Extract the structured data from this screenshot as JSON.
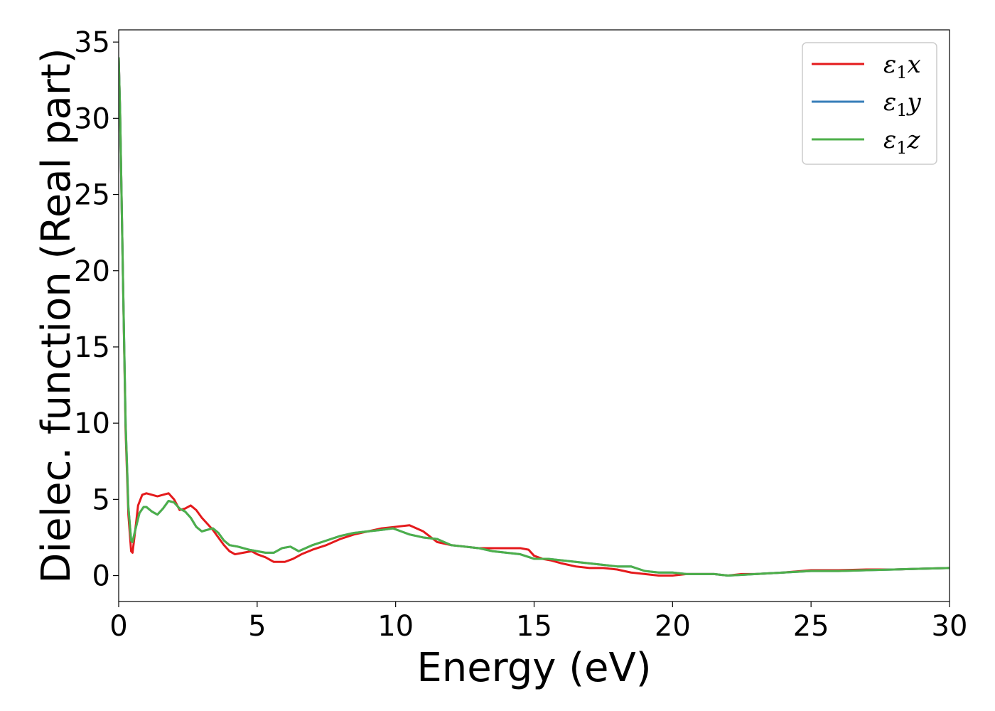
{
  "chart_data": {
    "type": "line",
    "xlabel": "Energy (eV)",
    "ylabel": "Dielec. function (Real part)",
    "xlim": [
      0,
      30
    ],
    "ylim": [
      -1.7,
      35.8
    ],
    "xticks": [
      0,
      5,
      10,
      15,
      20,
      25,
      30
    ],
    "yticks": [
      0,
      5,
      10,
      15,
      20,
      25,
      30,
      35
    ],
    "grid": false,
    "legend_position": "top-right",
    "series": [
      {
        "name": "ε1x",
        "legend": {
          "main": "ε",
          "sub": "1",
          "suffix": "x"
        },
        "color": "#e41a1c",
        "x": [
          0.0,
          0.05,
          0.15,
          0.25,
          0.35,
          0.45,
          0.5,
          0.6,
          0.7,
          0.85,
          1.0,
          1.2,
          1.4,
          1.6,
          1.8,
          2.0,
          2.2,
          2.4,
          2.6,
          2.8,
          3.0,
          3.2,
          3.4,
          3.6,
          3.8,
          4.0,
          4.2,
          4.5,
          4.8,
          5.0,
          5.3,
          5.6,
          6.0,
          6.3,
          6.6,
          7.0,
          7.5,
          8.0,
          8.5,
          9.0,
          9.5,
          10.0,
          10.5,
          11.0,
          11.5,
          12.0,
          12.5,
          13.0,
          13.5,
          14.0,
          14.5,
          14.8,
          15.0,
          15.3,
          15.6,
          16.0,
          16.5,
          17.0,
          17.5,
          18.0,
          18.5,
          19.0,
          19.5,
          20.0,
          20.5,
          21.0,
          21.5,
          22.0,
          22.5,
          23.0,
          24.0,
          25.0,
          26.0,
          27.0,
          28.0,
          29.0,
          30.0
        ],
        "values": [
          34.0,
          30.5,
          20.0,
          9.5,
          4.0,
          1.6,
          1.5,
          3.0,
          4.6,
          5.3,
          5.4,
          5.3,
          5.2,
          5.3,
          5.4,
          5.0,
          4.3,
          4.4,
          4.6,
          4.3,
          3.8,
          3.4,
          3.0,
          2.5,
          2.0,
          1.6,
          1.4,
          1.5,
          1.6,
          1.4,
          1.2,
          0.9,
          0.9,
          1.1,
          1.4,
          1.7,
          2.0,
          2.4,
          2.7,
          2.9,
          3.1,
          3.2,
          3.3,
          2.9,
          2.2,
          2.0,
          1.9,
          1.8,
          1.8,
          1.8,
          1.8,
          1.7,
          1.3,
          1.1,
          1.0,
          0.8,
          0.6,
          0.5,
          0.5,
          0.4,
          0.2,
          0.1,
          0.0,
          0.0,
          0.1,
          0.1,
          0.1,
          0.0,
          0.1,
          0.1,
          0.2,
          0.35,
          0.35,
          0.4,
          0.4,
          0.45,
          0.5
        ]
      },
      {
        "name": "ε1y",
        "legend": {
          "main": "ε",
          "sub": "1",
          "suffix": "y"
        },
        "color": "#377eb8",
        "x": [
          0.0,
          0.05,
          0.15,
          0.25,
          0.35,
          0.45,
          0.5,
          0.6,
          0.75,
          0.9,
          1.0,
          1.2,
          1.4,
          1.6,
          1.8,
          2.0,
          2.2,
          2.4,
          2.6,
          2.8,
          3.0,
          3.2,
          3.4,
          3.6,
          3.8,
          4.0,
          4.3,
          4.7,
          5.0,
          5.3,
          5.6,
          5.9,
          6.2,
          6.5,
          7.0,
          7.5,
          8.0,
          8.5,
          9.0,
          9.5,
          9.9,
          10.2,
          10.5,
          11.0,
          11.5,
          12.0,
          12.5,
          13.0,
          13.5,
          14.0,
          14.5,
          15.0,
          15.5,
          16.0,
          16.5,
          17.0,
          17.5,
          18.0,
          18.5,
          19.0,
          19.5,
          20.0,
          20.5,
          21.0,
          21.5,
          22.0,
          22.5,
          23.0,
          24.0,
          25.0,
          26.0,
          27.0,
          28.0,
          29.0,
          30.0
        ],
        "values": [
          34.0,
          30.5,
          20.0,
          10.0,
          4.5,
          2.3,
          2.2,
          3.0,
          4.1,
          4.5,
          4.5,
          4.2,
          4.0,
          4.4,
          4.9,
          4.8,
          4.4,
          4.2,
          3.8,
          3.2,
          2.9,
          3.0,
          3.1,
          2.8,
          2.3,
          2.0,
          1.9,
          1.7,
          1.6,
          1.5,
          1.5,
          1.8,
          1.9,
          1.6,
          2.0,
          2.3,
          2.6,
          2.8,
          2.9,
          3.0,
          3.1,
          2.9,
          2.7,
          2.5,
          2.4,
          2.0,
          1.9,
          1.8,
          1.6,
          1.5,
          1.4,
          1.1,
          1.1,
          1.0,
          0.9,
          0.8,
          0.7,
          0.6,
          0.6,
          0.3,
          0.2,
          0.2,
          0.1,
          0.1,
          0.1,
          0.0,
          0.05,
          0.1,
          0.2,
          0.3,
          0.3,
          0.35,
          0.4,
          0.45,
          0.5
        ]
      },
      {
        "name": "ε1z",
        "legend": {
          "main": "ε",
          "sub": "1",
          "suffix": "z"
        },
        "color": "#4daf4a",
        "x": [
          0.0,
          0.05,
          0.15,
          0.25,
          0.35,
          0.45,
          0.5,
          0.6,
          0.75,
          0.9,
          1.0,
          1.2,
          1.4,
          1.6,
          1.8,
          2.0,
          2.2,
          2.4,
          2.6,
          2.8,
          3.0,
          3.2,
          3.4,
          3.6,
          3.8,
          4.0,
          4.3,
          4.7,
          5.0,
          5.3,
          5.6,
          5.9,
          6.2,
          6.5,
          7.0,
          7.5,
          8.0,
          8.5,
          9.0,
          9.5,
          9.9,
          10.2,
          10.5,
          11.0,
          11.5,
          12.0,
          12.5,
          13.0,
          13.5,
          14.0,
          14.5,
          15.0,
          15.5,
          16.0,
          16.5,
          17.0,
          17.5,
          18.0,
          18.5,
          19.0,
          19.5,
          20.0,
          20.5,
          21.0,
          21.5,
          22.0,
          22.5,
          23.0,
          24.0,
          25.0,
          26.0,
          27.0,
          28.0,
          29.0,
          30.0
        ],
        "values": [
          34.0,
          30.5,
          20.0,
          10.0,
          4.5,
          2.3,
          2.2,
          3.0,
          4.1,
          4.5,
          4.5,
          4.2,
          4.0,
          4.4,
          4.9,
          4.8,
          4.4,
          4.2,
          3.8,
          3.2,
          2.9,
          3.0,
          3.1,
          2.8,
          2.3,
          2.0,
          1.9,
          1.7,
          1.6,
          1.5,
          1.5,
          1.8,
          1.9,
          1.6,
          2.0,
          2.3,
          2.6,
          2.8,
          2.9,
          3.0,
          3.1,
          2.9,
          2.7,
          2.5,
          2.4,
          2.0,
          1.9,
          1.8,
          1.6,
          1.5,
          1.4,
          1.1,
          1.1,
          1.0,
          0.9,
          0.8,
          0.7,
          0.6,
          0.6,
          0.3,
          0.2,
          0.2,
          0.1,
          0.1,
          0.1,
          0.0,
          0.05,
          0.1,
          0.2,
          0.3,
          0.3,
          0.35,
          0.4,
          0.45,
          0.5
        ]
      }
    ]
  }
}
